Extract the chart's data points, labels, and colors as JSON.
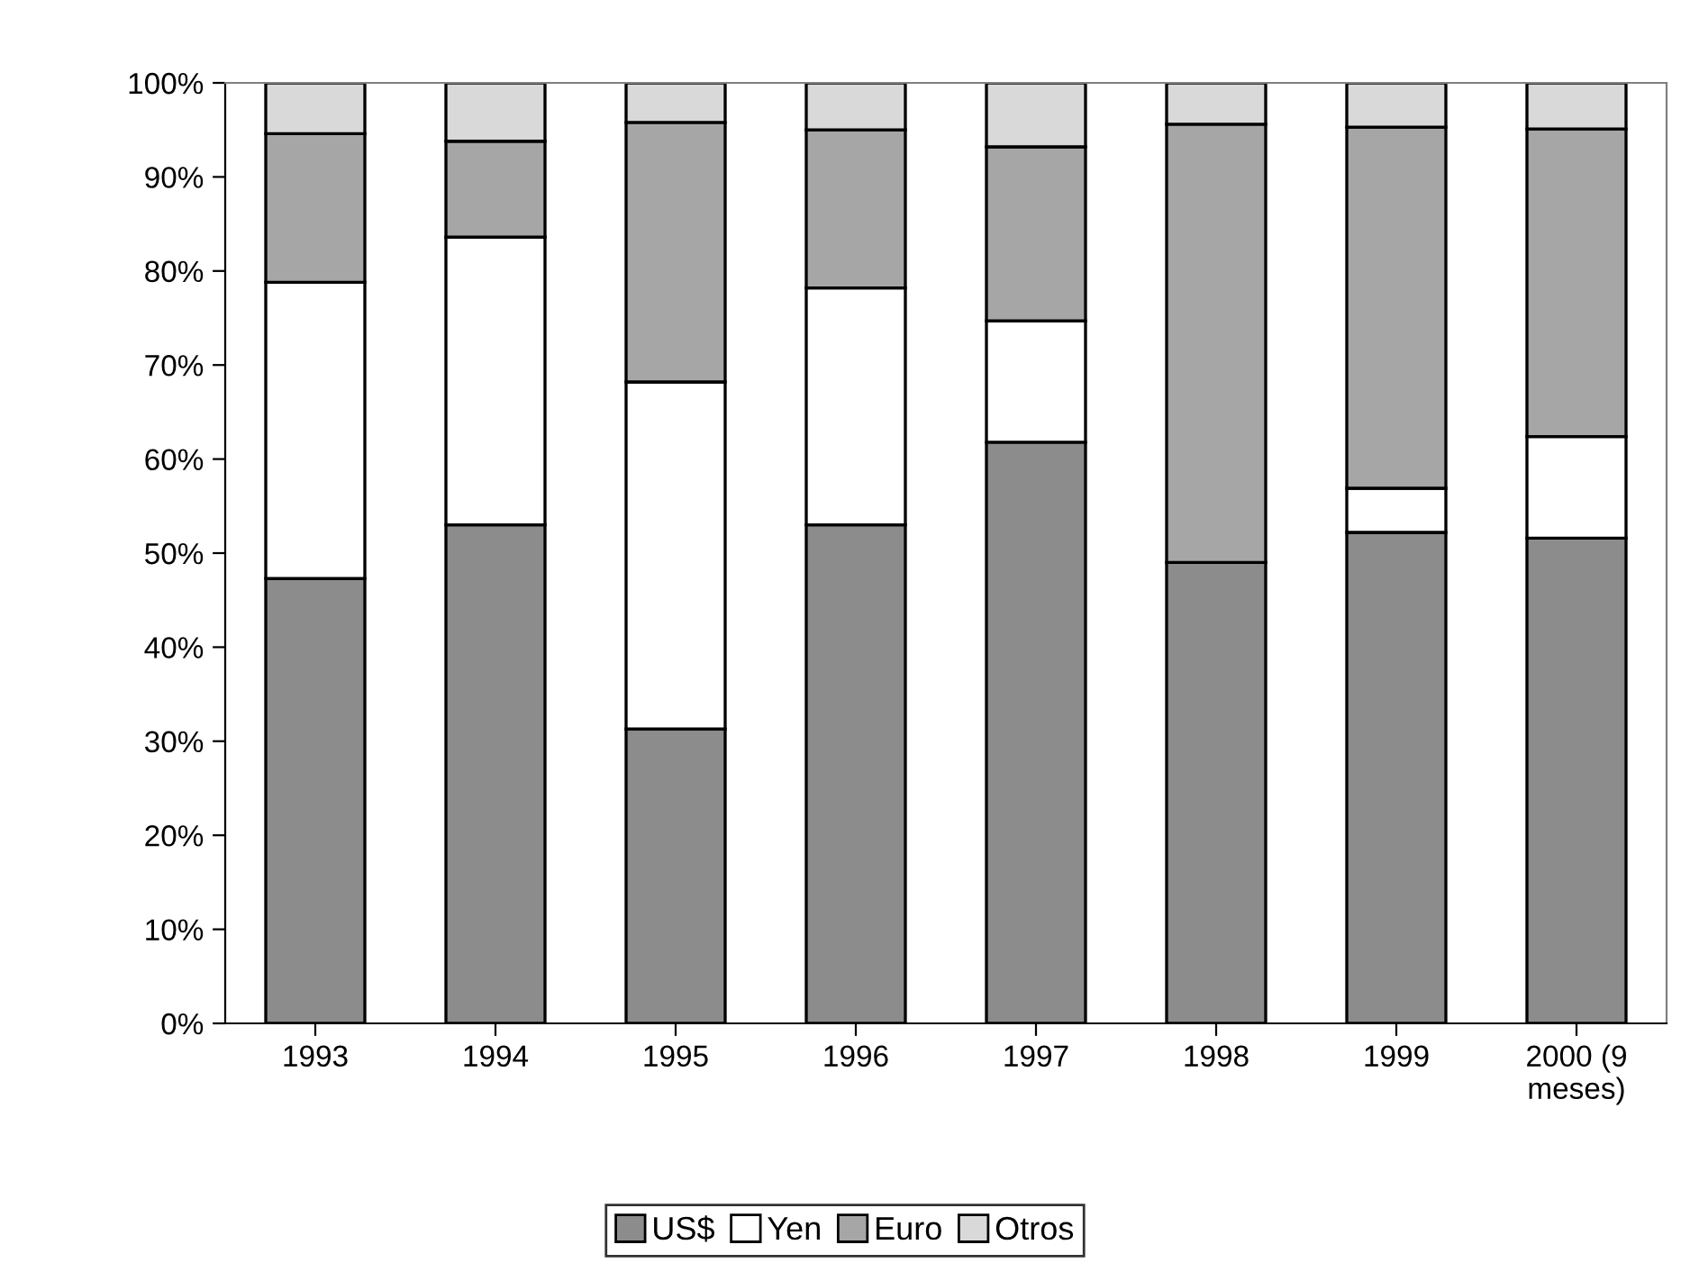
{
  "chart_data": {
    "type": "bar",
    "stacked": true,
    "categories": [
      "1993",
      "1994",
      "1995",
      "1996",
      "1997",
      "1998",
      "1999",
      "2000 (9\nmeses)"
    ],
    "series": [
      {
        "name": "US$",
        "color": "#8c8c8c",
        "values": [
          47.3,
          53,
          31.3,
          53,
          61.8,
          49,
          52.2,
          51.6
        ]
      },
      {
        "name": "Yen",
        "color": "#ffffff",
        "values": [
          31.5,
          30.6,
          36.9,
          25.2,
          12.9,
          0,
          4.7,
          10.8
        ]
      },
      {
        "name": "Euro",
        "color": "#a6a6a6",
        "values": [
          15.8,
          10.2,
          27.6,
          16.8,
          18.5,
          46.6,
          38.4,
          32.7
        ]
      },
      {
        "name": "Otros",
        "color": "#d9d9d9",
        "values": [
          5.4,
          6.2,
          4.2,
          5.0,
          6.8,
          4.4,
          4.7,
          4.9
        ]
      }
    ],
    "ylim": [
      0,
      100
    ],
    "yticks": [
      {
        "value": 0,
        "label": "0%"
      },
      {
        "value": 10,
        "label": "10%"
      },
      {
        "value": 20,
        "label": "20%"
      },
      {
        "value": 30,
        "label": "30%"
      },
      {
        "value": 40,
        "label": "40%"
      },
      {
        "value": 50,
        "label": "50%"
      },
      {
        "value": 60,
        "label": "60%"
      },
      {
        "value": 70,
        "label": "70%"
      },
      {
        "value": 80,
        "label": "80%"
      },
      {
        "value": 90,
        "label": "90%"
      },
      {
        "value": 100,
        "label": "100%"
      }
    ],
    "legend": "bottom"
  }
}
